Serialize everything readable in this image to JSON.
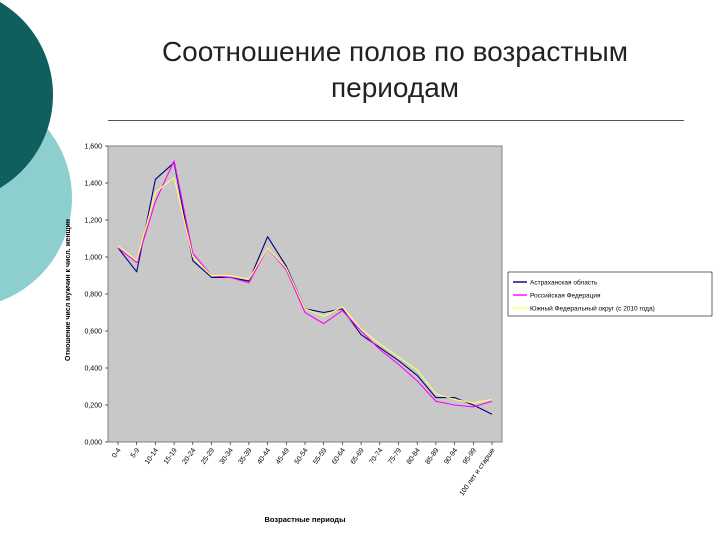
{
  "slide": {
    "title": "Соотношение полов по возрастным периодам"
  },
  "colors": {
    "background": "#ffffff",
    "decor_dark": "#0f5f5f",
    "decor_light": "#8dcfcf",
    "plot_area": "#c8c8c8",
    "axis": "#000000"
  },
  "chart_data": {
    "type": "line",
    "title": "",
    "xlabel": "Возрастные периоды",
    "ylabel": "Отношение числ мужчин к числ. женщин",
    "ylim": [
      0,
      1.6
    ],
    "yticks": [
      "0,000",
      "0,200",
      "0,400",
      "0,600",
      "0,800",
      "1,000",
      "1,200",
      "1,400",
      "1,600"
    ],
    "grid": false,
    "legend_position": "right",
    "categories": [
      "0-4",
      "5-9",
      "10-14",
      "15-19",
      "20-24",
      "25-29",
      "30-34",
      "35-39",
      "40-44",
      "45-49",
      "50-54",
      "55-59",
      "60-64",
      "65-69",
      "70-74",
      "75-79",
      "80-84",
      "85-89",
      "90-94",
      "95-99",
      "100 лет и старше"
    ],
    "series": [
      {
        "name": "Астраханская область",
        "color": "#000080",
        "values": [
          1.05,
          0.92,
          1.42,
          1.51,
          0.98,
          0.89,
          0.89,
          0.87,
          1.11,
          0.95,
          0.72,
          0.7,
          0.72,
          0.58,
          0.51,
          0.44,
          0.36,
          0.24,
          0.24,
          0.2,
          0.15
        ]
      },
      {
        "name": "Российская Федерация",
        "color": "#ff00ff",
        "values": [
          1.05,
          0.97,
          1.3,
          1.52,
          1.02,
          0.9,
          0.89,
          0.86,
          1.05,
          0.93,
          0.7,
          0.64,
          0.71,
          0.6,
          0.5,
          0.42,
          0.33,
          0.22,
          0.2,
          0.19,
          0.22
        ]
      },
      {
        "name": "Южный Федеральный округ (с 2010 года)",
        "color": "#ffff66",
        "values": [
          1.06,
          0.98,
          1.35,
          1.43,
          1.0,
          0.9,
          0.9,
          0.88,
          1.05,
          0.94,
          0.72,
          0.68,
          0.73,
          0.61,
          0.53,
          0.46,
          0.39,
          0.26,
          0.23,
          0.21,
          0.23
        ]
      }
    ]
  }
}
